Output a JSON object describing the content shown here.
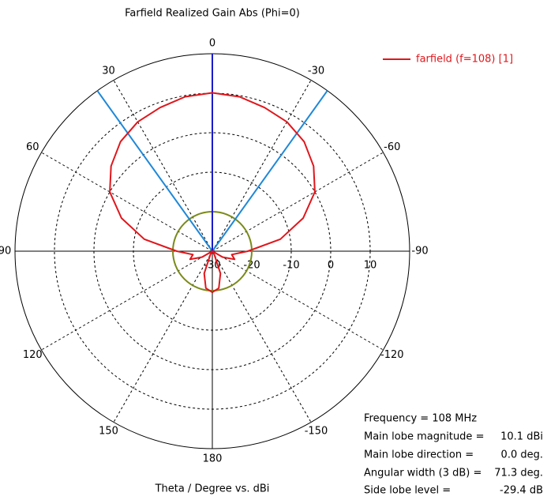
{
  "chart_data": {
    "type": "polar",
    "title": "Farfield Realized Gain Abs (Phi=0)",
    "axis_label": "Theta / Degree vs. dBi",
    "x": [
      -180,
      -170,
      -160,
      -150,
      -140,
      -130,
      -120,
      -110,
      -100,
      -90,
      -80,
      -70,
      -60,
      -50,
      -40,
      -30,
      -20,
      -10,
      0,
      10,
      20,
      30,
      40,
      50,
      60,
      70,
      80,
      90,
      100,
      110,
      120,
      130,
      140,
      150,
      160,
      170,
      180
    ],
    "series": [
      {
        "name": "farfield (f=108) [1]",
        "color": "#e0161b",
        "values": [
          -19.6,
          -20.5,
          -24,
          -29,
          -30,
          -30,
          -27,
          -24,
          -25,
          -21,
          -12.5,
          -5.5,
          0,
          3.5,
          6.2,
          7.8,
          8.7,
          9.7,
          10.1,
          9.7,
          8.7,
          7.8,
          6.2,
          3.5,
          0,
          -5.5,
          -12.5,
          -21,
          -25,
          -24,
          -27,
          -30,
          -30,
          -29,
          -24,
          -20.5,
          -19.6
        ]
      }
    ],
    "rlim": [
      -30,
      20
    ],
    "rticks": [
      -30,
      -20,
      -10,
      0,
      10
    ],
    "theta_ticks": [
      0,
      30,
      60,
      90,
      120,
      150,
      180,
      -150,
      -120,
      -90,
      -60,
      -30
    ],
    "grid": true,
    "legend": "top-right",
    "reference_level": -20,
    "reference_color": "#7a8a1a",
    "direction_color": "#1a1acc",
    "beam_color": "#1e88d8",
    "annotations": [
      {
        "label": "Frequency = 108 MHz"
      },
      {
        "label": "Main lobe magnitude =",
        "value": 10.1,
        "value_label": "10.1 dBi"
      },
      {
        "label": "Main lobe direction =",
        "value": 0,
        "value_label": "0.0 deg."
      },
      {
        "label": "Angular width (3 dB) =",
        "value": 71.3,
        "value_label": "71.3 deg."
      },
      {
        "label": "Side lobe level =",
        "value": -29.4,
        "value_label": "-29.4 dB"
      }
    ]
  }
}
